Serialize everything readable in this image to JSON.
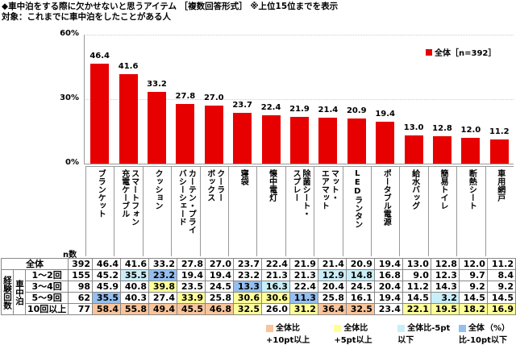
{
  "title": "◆車中泊をする際に欠かせないと思うアイテム ［複数回答形式］ ※上位15位までを表示",
  "subtitle": "対象：これまでに車中泊をしたことがある人",
  "chart_data": {
    "type": "bar",
    "ylim": [
      0,
      60
    ],
    "yticks": [
      "60%",
      "30%",
      "0%"
    ],
    "grid": true,
    "legend_position": "top-right",
    "series": [
      {
        "name": "全体［n=392］",
        "color": "#e60000",
        "values": [
          46.4,
          41.6,
          33.2,
          27.8,
          27.0,
          23.7,
          22.4,
          21.9,
          21.4,
          20.9,
          19.4,
          13.0,
          12.8,
          12.0,
          11.2
        ]
      }
    ],
    "categories": [
      "ブランケット",
      "スマートフォン\n充電ケーブル",
      "クッション",
      "カーテン・プライ\nバシーシェード",
      "クーラー\nボックス",
      "寝袋",
      "懐中電灯",
      "除菌シート・\nスプレー",
      "マット・\nエアマット",
      "LEDランタン",
      "ポータブル電源",
      "給水バッグ",
      "簡易トイレ",
      "断熱シート",
      "車用網戸"
    ]
  },
  "table": {
    "n_header": "n数",
    "group_label": "経験回数",
    "sub_label": "車中泊",
    "rows": [
      {
        "label": "全体",
        "n": "392",
        "values": [
          "46.4",
          "41.6",
          "33.2",
          "27.8",
          "27.0",
          "23.7",
          "22.4",
          "21.9",
          "21.4",
          "20.9",
          "19.4",
          "13.0",
          "12.8",
          "12.0",
          "11.2"
        ],
        "marks": "..............."
      },
      {
        "label": "1～2回",
        "n": "155",
        "values": [
          "45.2",
          "35.5",
          "23.2",
          "19.4",
          "19.4",
          "23.2",
          "21.3",
          "21.3",
          "12.9",
          "14.8",
          "16.8",
          "9.0",
          "12.3",
          "9.7",
          "8.4"
        ],
        "marks": ".cd.....cc....."
      },
      {
        "label": "3～4回",
        "n": "98",
        "values": [
          "45.9",
          "40.8",
          "39.8",
          "23.5",
          "24.5",
          "13.3",
          "16.3",
          "22.4",
          "20.4",
          "24.5",
          "20.4",
          "11.2",
          "14.3",
          "9.2",
          "9.2"
        ],
        "marks": "..b..dc........"
      },
      {
        "label": "5～9回",
        "n": "62",
        "values": [
          "35.5",
          "40.3",
          "27.4",
          "33.9",
          "25.8",
          "30.6",
          "30.6",
          "11.3",
          "25.8",
          "16.1",
          "19.4",
          "14.5",
          "3.2",
          "14.5",
          "14.5"
        ],
        "marks": "d..b.bbd....c.."
      },
      {
        "label": "10回以上",
        "n": "77",
        "values": [
          "58.4",
          "55.8",
          "49.4",
          "45.5",
          "46.8",
          "32.5",
          "26.0",
          "31.2",
          "36.4",
          "32.5",
          "23.4",
          "22.1",
          "19.5",
          "18.2",
          "16.9"
        ],
        "marks": "aaaaab.baa.bbbb"
      }
    ],
    "highlight_colors": {
      "a": "#f9c49a",
      "b": "#ffff99",
      "c": "#c9eef8",
      "d": "#95bff0"
    },
    "legend": [
      {
        "key": "a",
        "label": "全体比+10pt以上"
      },
      {
        "key": "b",
        "label": "全体比+5pt以上"
      },
      {
        "key": "c",
        "label": "全体比-5pt以下"
      },
      {
        "key": "d",
        "label": "全体比-10pt以下"
      }
    ],
    "unit": "（%）"
  }
}
